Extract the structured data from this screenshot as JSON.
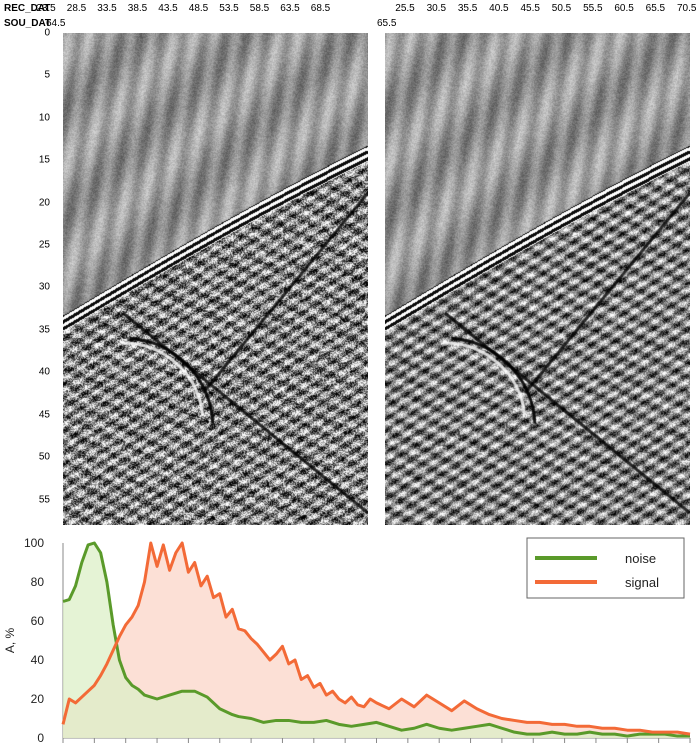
{
  "header": {
    "rec_label": "REC_DAT",
    "sou_label": "SOU_DAT",
    "left_rec_ticks": [
      "23.5",
      "28.5",
      "33.5",
      "38.5",
      "43.5",
      "48.5",
      "53.5",
      "58.5",
      "63.5",
      "68.5"
    ],
    "left_sou_value": "64.5",
    "right_rec_ticks": [
      "25.5",
      "30.5",
      "35.5",
      "40.5",
      "45.5",
      "50.5",
      "55.5",
      "60.5",
      "65.5",
      "70.5"
    ],
    "right_sou_value": "65.5"
  },
  "depth_axis": {
    "ticks": [
      "0",
      "5",
      "10",
      "15",
      "20",
      "25",
      "30",
      "35",
      "40",
      "45",
      "50",
      "55"
    ],
    "range": [
      0,
      58
    ]
  },
  "panels": [
    {
      "id": "left",
      "rec_range": [
        21.5,
        70.5
      ],
      "description": "seismic gather before filtering"
    },
    {
      "id": "right",
      "rec_range": [
        23.5,
        72.5
      ],
      "description": "seismic gather after filtering"
    }
  ],
  "colors": {
    "noise": "#5a9a2a",
    "noise_fill": "#dcefc7",
    "signal": "#f36a37",
    "signal_fill": "#fbd6c8"
  },
  "chart_data": {
    "type": "area",
    "ylabel": "A, %",
    "ylim": [
      0,
      100
    ],
    "yticks": [
      0,
      20,
      40,
      60,
      80,
      100
    ],
    "xlim": [
      0,
      100
    ],
    "x_minor_ticks": 20,
    "legend": {
      "placement": "top-right",
      "entries": [
        "noise",
        "signal"
      ]
    },
    "series": [
      {
        "name": "noise",
        "x": [
          0,
          1,
          2,
          3,
          4,
          5,
          6,
          7,
          8,
          9,
          10,
          11,
          12,
          13,
          14,
          15,
          17,
          19,
          21,
          23,
          25,
          27,
          28,
          30,
          32,
          34,
          36,
          38,
          40,
          42,
          44,
          46,
          48,
          50,
          52,
          54,
          56,
          58,
          60,
          62,
          64,
          66,
          68,
          70,
          72,
          74,
          76,
          78,
          80,
          82,
          84,
          86,
          88,
          90,
          92,
          94,
          96,
          98,
          100
        ],
        "values": [
          70,
          71,
          78,
          90,
          99,
          100,
          95,
          80,
          58,
          40,
          31,
          27,
          25,
          22,
          21,
          20,
          22,
          24,
          24,
          21,
          15,
          12,
          11,
          10,
          8,
          9,
          9,
          8,
          8,
          9,
          7,
          6,
          7,
          8,
          6,
          4,
          5,
          7,
          5,
          4,
          5,
          6,
          7,
          5,
          3,
          2,
          2,
          3,
          2,
          2,
          3,
          2,
          2,
          1,
          2,
          2,
          2,
          1,
          1
        ]
      },
      {
        "name": "signal",
        "x": [
          0,
          1,
          2,
          3,
          4,
          5,
          6,
          7,
          8,
          9,
          10,
          11,
          12,
          13,
          14,
          15,
          16,
          17,
          18,
          19,
          20,
          21,
          22,
          23,
          24,
          25,
          26,
          27,
          28,
          29,
          30,
          31,
          32,
          33,
          34,
          35,
          36,
          37,
          38,
          39,
          40,
          41,
          42,
          43,
          44,
          45,
          46,
          47,
          48,
          49,
          50,
          52,
          54,
          56,
          58,
          60,
          62,
          64,
          66,
          68,
          70,
          72,
          74,
          76,
          78,
          80,
          82,
          84,
          86,
          88,
          90,
          92,
          94,
          96,
          98,
          100
        ],
        "values": [
          7,
          20,
          18,
          21,
          24,
          27,
          32,
          38,
          45,
          52,
          58,
          62,
          68,
          80,
          100,
          88,
          99,
          86,
          95,
          100,
          85,
          90,
          78,
          83,
          72,
          74,
          62,
          66,
          56,
          55,
          51,
          48,
          44,
          40,
          43,
          47,
          38,
          40,
          30,
          32,
          26,
          28,
          22,
          24,
          20,
          18,
          21,
          17,
          16,
          20,
          18,
          15,
          20,
          16,
          22,
          18,
          14,
          19,
          15,
          12,
          10,
          9,
          8,
          8,
          7,
          7,
          6,
          6,
          5,
          5,
          4,
          4,
          3,
          3,
          3,
          2
        ]
      }
    ]
  }
}
